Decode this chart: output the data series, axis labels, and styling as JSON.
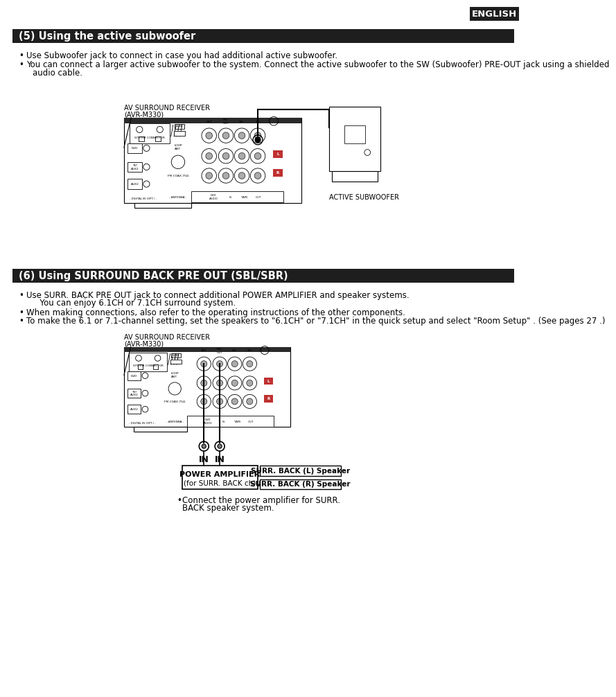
{
  "page_bg": "#ffffff",
  "header_bg": "#1e1e1e",
  "header_text_color": "#ffffff",
  "english_label": "ENGLISH",
  "section1_title": "(5) Using the active subwoofer",
  "section1_bullet1": "Use Subwoofer jack to connect in case you had additional active subwoofer.",
  "section1_bullet2a": "You can connect a larger active subwoofer to the system. Connect the active subwoofer to the SW (Subwoofer) PRE-OUT jack using a shielded",
  "section1_bullet2b": "audio cable.",
  "section1_diagram_label1": "AV SURROUND RECEIVER",
  "section1_diagram_label2": "(AVR-M330)",
  "section1_subwoofer_label": "ACTIVE SUBWOOFER",
  "section2_title": "(6) Using SURROUND BACK PRE OUT (SBL/SBR)",
  "section2_bullet1a": "Use SURR. BACK PRE OUT jack to connect additional POWER AMPLIFIER and speaker systems.",
  "section2_bullet1b": "  You can enjoy 6.1CH or 7.1CH surround system.",
  "section2_bullet2": "When making connections, also refer to the operating instructions of the other components.",
  "section2_bullet3": "To make the 6.1 or 7.1-channel setting, set the speakers to \"6.1CH\" or \"7.1CH\" in the quick setup and select \"Room Setup\" . (See pages 27 .)",
  "section2_diagram_label1": "AV SURROUND RECEIVER",
  "section2_diagram_label2": "(AVR-M330)",
  "power_amp_line1": "POWER AMPLIFIER",
  "power_amp_line2": "(for SURR. BACK ch)",
  "surr_back_l": "SURR. BACK (L) Speaker",
  "surr_back_r": "SURR. BACK (R) Speaker",
  "in_label": "IN",
  "footnote_line1": "Connect the power amplifier for SURR.",
  "footnote_line2": "BACK speaker system.",
  "body_fontsize": 8.5,
  "label_fontsize": 7.0,
  "title_fontsize": 10.5
}
